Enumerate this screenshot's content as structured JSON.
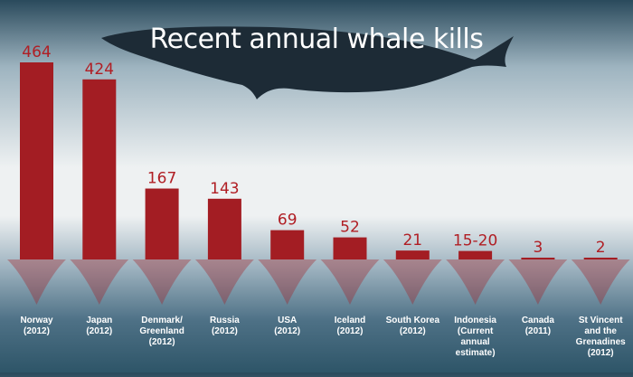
{
  "chart_data": {
    "type": "bar",
    "title": "Recent annual whale kills",
    "categories": [
      [
        "Norway",
        "(2012)"
      ],
      [
        "Japan",
        "(2012)"
      ],
      [
        "Denmark/",
        "Greenland",
        "(2012)"
      ],
      [
        "Russia",
        "(2012)"
      ],
      [
        "USA",
        "(2012)"
      ],
      [
        "Iceland",
        "(2012)"
      ],
      [
        "South Korea",
        "(2012)"
      ],
      [
        "Indonesia",
        "(Current",
        "annual",
        "estimate)"
      ],
      [
        "Canada",
        "(2011)"
      ],
      [
        "St Vincent",
        "and the",
        "Grenadines",
        "(2012)"
      ]
    ],
    "values": [
      464,
      424,
      167,
      143,
      69,
      52,
      21,
      20,
      3,
      2
    ],
    "data_labels": [
      "464",
      "424",
      "167",
      "143",
      "69",
      "52",
      "21",
      "15-20",
      "3",
      "2"
    ],
    "ylim": [
      0,
      464
    ],
    "grid": false,
    "colors": {
      "bar": "#a31d23",
      "label": "#b01e24",
      "category": "#ffffff",
      "title": "#ffffff",
      "whale": "#1d2b36"
    }
  }
}
